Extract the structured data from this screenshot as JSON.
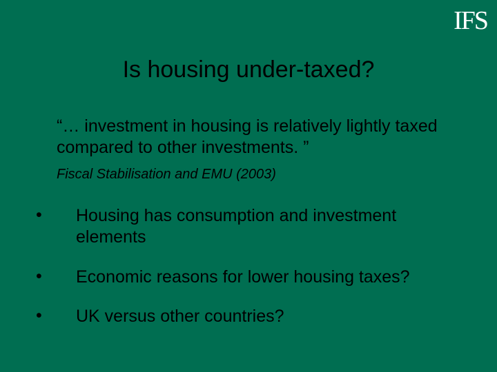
{
  "slide": {
    "background_color": "#006e51",
    "text_color": "#000000",
    "logo_color": "#ffffff",
    "logo": "IFS",
    "title": "Is housing under-taxed?",
    "quote": "“… investment in housing is relatively lightly taxed compared to other investments. ”",
    "citation": "Fiscal Stabilisation and EMU (2003)",
    "bullets": [
      {
        "text": "Housing has consumption and investment elements"
      },
      {
        "text": "Economic reasons for lower housing taxes?"
      },
      {
        "text": "UK versus other countries?"
      }
    ],
    "title_fontsize": 34,
    "body_fontsize": 25,
    "citation_fontsize": 20
  }
}
